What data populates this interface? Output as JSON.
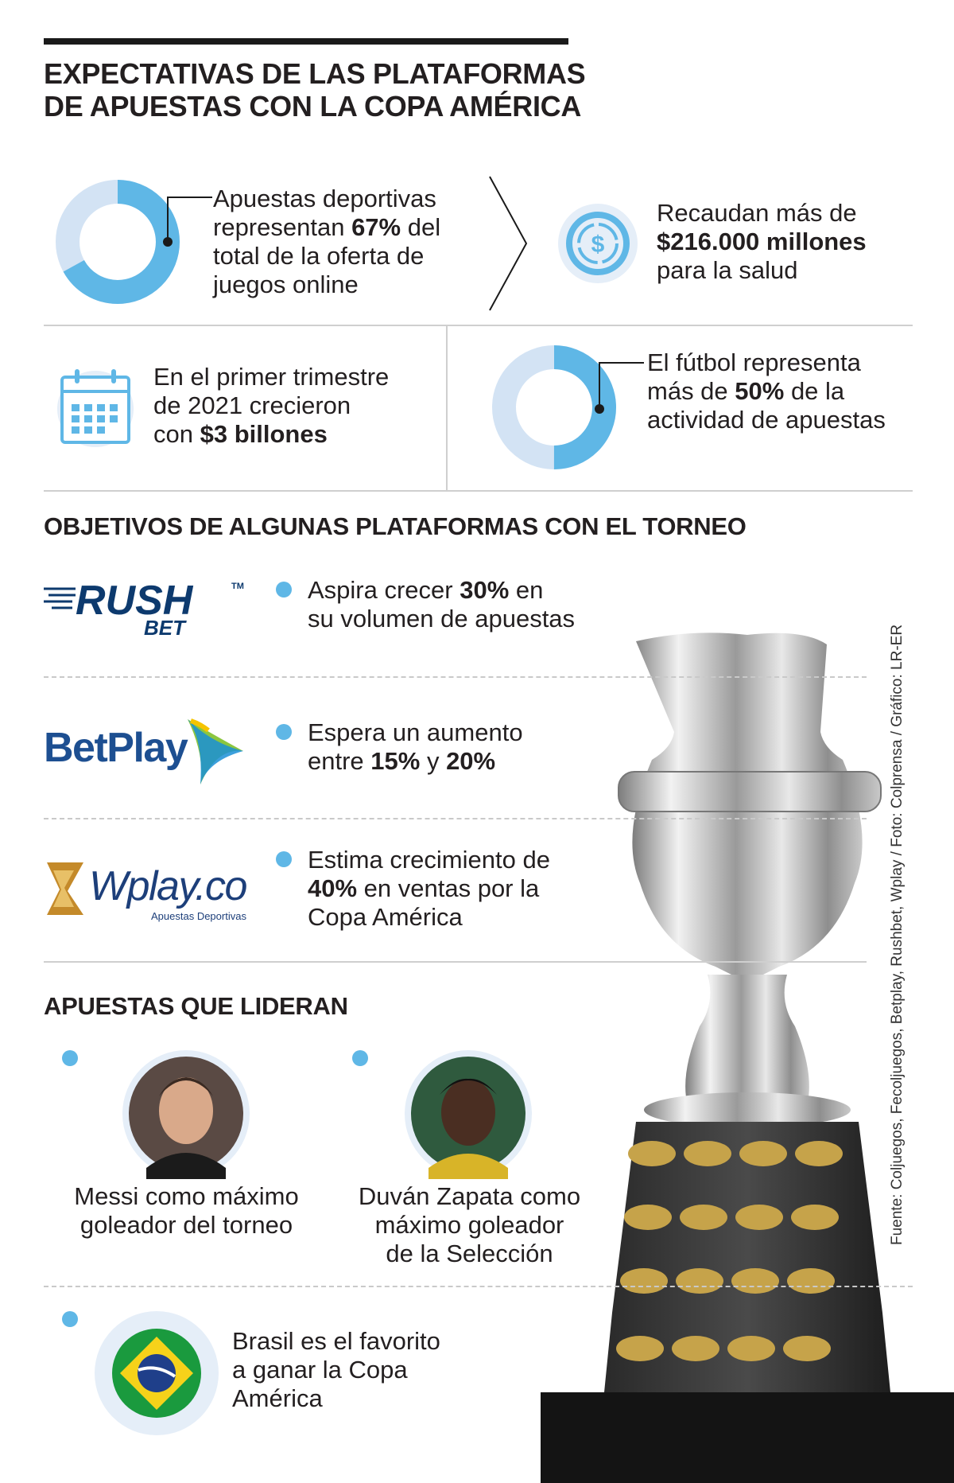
{
  "title": {
    "line1": "EXPECTATIVAS DE LAS PLATAFORMAS",
    "line2": "DE APUESTAS CON LA COPA AMÉRICA"
  },
  "stats": {
    "online": {
      "l1_pre": "Apuestas deportivas",
      "l2_pre": "representan ",
      "l2_bold": "67%",
      "l2_post": " del",
      "l3": "total de la oferta de",
      "l4": "juegos online",
      "percent": 67
    },
    "health": {
      "l1": "Recaudan más de",
      "l2_bold": "$216.000 millones",
      "l3": "para la salud"
    },
    "quarter": {
      "l1": "En el primer trimestre",
      "l2": "de 2021 crecieron",
      "l3_pre": "con ",
      "l3_bold": "$3 billones"
    },
    "football": {
      "l1": "El fútbol representa",
      "l2_pre": "más de ",
      "l2_bold": "50%",
      "l2_post": " de la",
      "l3": "actividad de apuestas",
      "percent": 50
    }
  },
  "objectives": {
    "heading": "OBJETIVOS DE ALGUNAS PLATAFORMAS CON EL TORNEO",
    "rushbet": {
      "logo_main": "RUSH",
      "logo_sub": "BET",
      "logo_tm": "TM",
      "l1_pre": "Aspira crecer ",
      "l1_bold": "30%",
      "l1_post": " en",
      "l2": "su volumen de apuestas"
    },
    "betplay": {
      "logo": "BetPlay",
      "l1": "Espera un aumento",
      "l2_pre": "entre ",
      "l2_bold1": "15%",
      "l2_mid": " y ",
      "l2_bold2": "20%"
    },
    "wplay": {
      "logo": "Wplay.co",
      "logo_sub": "Apuestas Deportivas",
      "l1": "Estima crecimiento de",
      "l2_bold": "40%",
      "l2_post": " en ventas por la",
      "l3": "Copa América"
    }
  },
  "leaders": {
    "heading": "APUESTAS QUE LIDERAN",
    "messi": {
      "l1": "Messi como máximo",
      "l2": "goleador del torneo"
    },
    "zapata": {
      "l1": "Duván Zapata como",
      "l2": "máximo goleador",
      "l3": "de la Selección"
    },
    "brasil": {
      "l1": "Brasil es el favorito",
      "l2": "a ganar la Copa",
      "l3": "América"
    }
  },
  "credit": "Fuente: Coljuegos, Fecoljuegos, Betplay, Rushbet, Wplay / Foto: Colprensa / Gráfico: LR-ER",
  "colors": {
    "accent": "#5fb7e6",
    "accent_light": "#d3e3f4",
    "text": "#231f20",
    "rush": "#0d3a6e",
    "betplay": "#1d4f91"
  }
}
